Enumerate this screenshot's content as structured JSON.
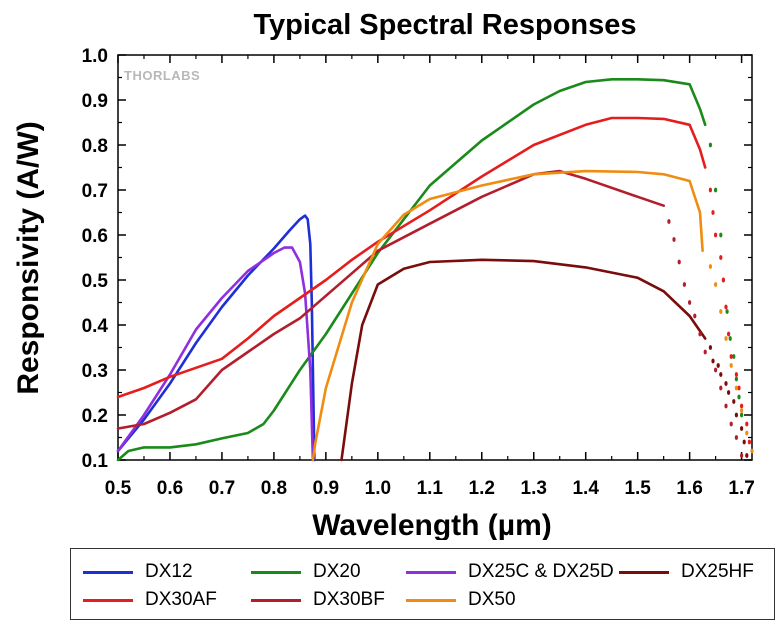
{
  "chart_data": {
    "type": "line",
    "title": "Typical Spectral Responses",
    "xlabel": "Wavelength (µm)",
    "ylabel": "Responsivity (A/W)",
    "xlim": [
      0.5,
      1.72
    ],
    "ylim": [
      0.1,
      1.0
    ],
    "xticks": [
      "0.5",
      "0.6",
      "0.7",
      "0.8",
      "0.9",
      "1.0",
      "1.1",
      "1.2",
      "1.3",
      "1.4",
      "1.5",
      "1.6",
      "1.7"
    ],
    "yticks": [
      "0.1",
      "0.2",
      "0.3",
      "0.4",
      "0.5",
      "0.6",
      "0.7",
      "0.8",
      "0.9",
      "1.0"
    ],
    "watermark": "THORLABS",
    "legend_position": "bottom",
    "grid": false,
    "series": [
      {
        "name": "DX12",
        "color": "#1f2fd6",
        "points": [
          [
            0.5,
            0.12
          ],
          [
            0.55,
            0.19
          ],
          [
            0.6,
            0.27
          ],
          [
            0.65,
            0.36
          ],
          [
            0.7,
            0.44
          ],
          [
            0.75,
            0.51
          ],
          [
            0.8,
            0.57
          ],
          [
            0.83,
            0.61
          ],
          [
            0.85,
            0.635
          ],
          [
            0.86,
            0.643
          ],
          [
            0.865,
            0.635
          ],
          [
            0.87,
            0.58
          ],
          [
            0.873,
            0.45
          ],
          [
            0.875,
            0.3
          ],
          [
            0.878,
            0.1
          ]
        ]
      },
      {
        "name": "DX20",
        "color": "#1a8a1a",
        "points": [
          [
            0.5,
            0.1
          ],
          [
            0.52,
            0.12
          ],
          [
            0.55,
            0.128
          ],
          [
            0.6,
            0.128
          ],
          [
            0.65,
            0.135
          ],
          [
            0.7,
            0.148
          ],
          [
            0.75,
            0.16
          ],
          [
            0.78,
            0.18
          ],
          [
            0.8,
            0.21
          ],
          [
            0.85,
            0.3
          ],
          [
            0.9,
            0.38
          ],
          [
            0.95,
            0.47
          ],
          [
            1.0,
            0.56
          ],
          [
            1.1,
            0.71
          ],
          [
            1.2,
            0.81
          ],
          [
            1.3,
            0.89
          ],
          [
            1.35,
            0.92
          ],
          [
            1.4,
            0.94
          ],
          [
            1.45,
            0.946
          ],
          [
            1.5,
            0.946
          ],
          [
            1.55,
            0.944
          ],
          [
            1.6,
            0.935
          ],
          [
            1.62,
            0.88
          ],
          [
            1.63,
            0.845
          ]
        ],
        "dotted": [
          [
            1.64,
            0.8
          ],
          [
            1.65,
            0.7
          ],
          [
            1.66,
            0.6
          ],
          [
            1.665,
            0.5
          ],
          [
            1.672,
            0.43
          ],
          [
            1.678,
            0.37
          ],
          [
            1.685,
            0.33
          ],
          [
            1.69,
            0.28
          ],
          [
            1.695,
            0.24
          ],
          [
            1.7,
            0.2
          ]
        ]
      },
      {
        "name": "DX25C & DX25D",
        "color": "#8f2fe0",
        "points": [
          [
            0.5,
            0.12
          ],
          [
            0.55,
            0.2
          ],
          [
            0.6,
            0.29
          ],
          [
            0.65,
            0.39
          ],
          [
            0.7,
            0.46
          ],
          [
            0.75,
            0.52
          ],
          [
            0.8,
            0.56
          ],
          [
            0.82,
            0.572
          ],
          [
            0.835,
            0.572
          ],
          [
            0.85,
            0.54
          ],
          [
            0.86,
            0.47
          ],
          [
            0.87,
            0.3
          ],
          [
            0.875,
            0.1
          ]
        ]
      },
      {
        "name": "DX25HF",
        "color": "#7a0c0c",
        "points": [
          [
            0.93,
            0.1
          ],
          [
            0.95,
            0.27
          ],
          [
            0.97,
            0.4
          ],
          [
            1.0,
            0.49
          ],
          [
            1.05,
            0.525
          ],
          [
            1.1,
            0.54
          ],
          [
            1.2,
            0.545
          ],
          [
            1.3,
            0.542
          ],
          [
            1.4,
            0.528
          ],
          [
            1.5,
            0.505
          ],
          [
            1.55,
            0.475
          ],
          [
            1.6,
            0.42
          ],
          [
            1.63,
            0.37
          ]
        ],
        "dotted": [
          [
            1.64,
            0.35
          ],
          [
            1.645,
            0.32
          ],
          [
            1.655,
            0.31
          ],
          [
            1.66,
            0.29
          ],
          [
            1.67,
            0.27
          ],
          [
            1.675,
            0.25
          ],
          [
            1.685,
            0.23
          ],
          [
            1.69,
            0.2
          ],
          [
            1.7,
            0.17
          ],
          [
            1.705,
            0.14
          ],
          [
            1.71,
            0.11
          ]
        ]
      },
      {
        "name": "DX30AF",
        "color": "#e51d1d",
        "points": [
          [
            0.5,
            0.24
          ],
          [
            0.55,
            0.26
          ],
          [
            0.6,
            0.285
          ],
          [
            0.65,
            0.305
          ],
          [
            0.7,
            0.325
          ],
          [
            0.75,
            0.37
          ],
          [
            0.8,
            0.42
          ],
          [
            0.85,
            0.46
          ],
          [
            0.9,
            0.5
          ],
          [
            0.95,
            0.545
          ],
          [
            1.0,
            0.585
          ],
          [
            1.1,
            0.655
          ],
          [
            1.2,
            0.73
          ],
          [
            1.3,
            0.8
          ],
          [
            1.4,
            0.845
          ],
          [
            1.45,
            0.86
          ],
          [
            1.5,
            0.86
          ],
          [
            1.55,
            0.858
          ],
          [
            1.6,
            0.845
          ],
          [
            1.62,
            0.79
          ],
          [
            1.63,
            0.75
          ]
        ],
        "dotted": [
          [
            1.64,
            0.7
          ],
          [
            1.645,
            0.65
          ],
          [
            1.65,
            0.6
          ],
          [
            1.66,
            0.55
          ],
          [
            1.665,
            0.5
          ],
          [
            1.67,
            0.44
          ],
          [
            1.675,
            0.38
          ],
          [
            1.68,
            0.33
          ],
          [
            1.69,
            0.29
          ],
          [
            1.695,
            0.26
          ],
          [
            1.7,
            0.22
          ],
          [
            1.71,
            0.18
          ],
          [
            1.715,
            0.14
          ]
        ]
      },
      {
        "name": "DX30BF",
        "color": "#b31e2d",
        "points": [
          [
            0.5,
            0.17
          ],
          [
            0.55,
            0.18
          ],
          [
            0.6,
            0.205
          ],
          [
            0.65,
            0.235
          ],
          [
            0.7,
            0.3
          ],
          [
            0.75,
            0.34
          ],
          [
            0.8,
            0.38
          ],
          [
            0.85,
            0.415
          ],
          [
            0.9,
            0.465
          ],
          [
            0.95,
            0.515
          ],
          [
            1.0,
            0.565
          ],
          [
            1.1,
            0.625
          ],
          [
            1.2,
            0.685
          ],
          [
            1.3,
            0.735
          ],
          [
            1.35,
            0.742
          ],
          [
            1.4,
            0.725
          ],
          [
            1.5,
            0.685
          ],
          [
            1.55,
            0.665
          ]
        ],
        "dotted": [
          [
            1.56,
            0.63
          ],
          [
            1.57,
            0.59
          ],
          [
            1.58,
            0.54
          ],
          [
            1.59,
            0.49
          ],
          [
            1.6,
            0.45
          ],
          [
            1.61,
            0.42
          ],
          [
            1.62,
            0.38
          ],
          [
            1.63,
            0.34
          ],
          [
            1.65,
            0.3
          ],
          [
            1.66,
            0.26
          ],
          [
            1.67,
            0.22
          ],
          [
            1.68,
            0.18
          ],
          [
            1.69,
            0.15
          ],
          [
            1.7,
            0.11
          ]
        ]
      },
      {
        "name": "DX50",
        "color": "#f08c10",
        "points": [
          [
            0.875,
            0.1
          ],
          [
            0.88,
            0.14
          ],
          [
            0.9,
            0.26
          ],
          [
            0.95,
            0.45
          ],
          [
            1.0,
            0.58
          ],
          [
            1.05,
            0.645
          ],
          [
            1.1,
            0.68
          ],
          [
            1.2,
            0.71
          ],
          [
            1.3,
            0.735
          ],
          [
            1.4,
            0.742
          ],
          [
            1.5,
            0.74
          ],
          [
            1.55,
            0.735
          ],
          [
            1.6,
            0.72
          ],
          [
            1.62,
            0.65
          ],
          [
            1.625,
            0.565
          ]
        ],
        "dotted": [
          [
            1.64,
            0.53
          ],
          [
            1.65,
            0.49
          ],
          [
            1.66,
            0.43
          ],
          [
            1.67,
            0.37
          ],
          [
            1.68,
            0.31
          ],
          [
            1.69,
            0.26
          ],
          [
            1.7,
            0.21
          ],
          [
            1.71,
            0.16
          ],
          [
            1.72,
            0.12
          ]
        ]
      }
    ]
  }
}
